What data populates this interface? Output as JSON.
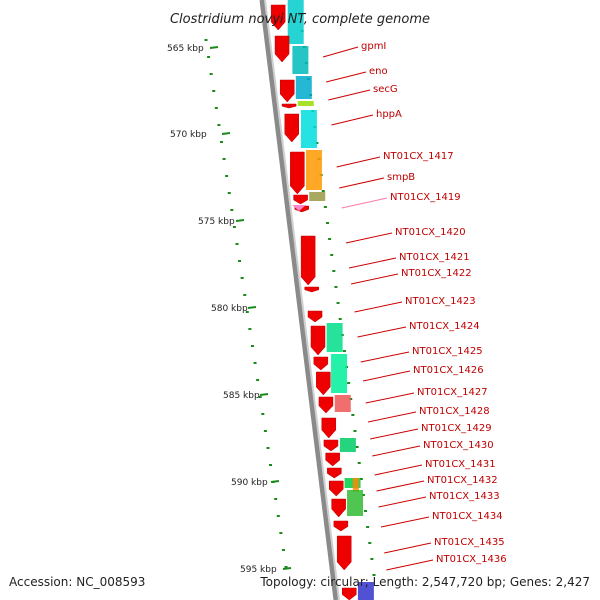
{
  "title": "Clostridium novyi NT, complete genome",
  "accession": "Accession: NC_008593",
  "topology": "Topology: circular; Length: 2,547,720 bp; Genes: 2,427",
  "colors": {
    "backbone": "#8a8a8a",
    "gene_arrow": "#ee0000",
    "tick": "#1a8a1a",
    "leader": "#cc0000",
    "label": "#c00000",
    "label_faded": "#ff77aa"
  },
  "kbp_ticks": [
    "565 kbp",
    "570 kbp",
    "575 kbp",
    "580 kbp",
    "585 kbp",
    "590 kbp",
    "595 kbp"
  ],
  "genes": [
    {
      "name": "gpmI"
    },
    {
      "name": "eno"
    },
    {
      "name": "secG"
    },
    {
      "name": "hppA"
    },
    {
      "name": "NT01CX_1417"
    },
    {
      "name": "smpB"
    },
    {
      "name": "NT01CX_1419"
    },
    {
      "name": "NT01CX_1420"
    },
    {
      "name": "NT01CX_1421"
    },
    {
      "name": "NT01CX_1422"
    },
    {
      "name": "NT01CX_1423"
    },
    {
      "name": "NT01CX_1424"
    },
    {
      "name": "NT01CX_1425"
    },
    {
      "name": "NT01CX_1426"
    },
    {
      "name": "NT01CX_1427"
    },
    {
      "name": "NT01CX_1428"
    },
    {
      "name": "NT01CX_1429"
    },
    {
      "name": "NT01CX_1430"
    },
    {
      "name": "NT01CX_1431"
    },
    {
      "name": "NT01CX_1432"
    },
    {
      "name": "NT01CX_1433"
    },
    {
      "name": "NT01CX_1434"
    },
    {
      "name": "NT01CX_1435"
    },
    {
      "name": "NT01CX_1436"
    }
  ]
}
